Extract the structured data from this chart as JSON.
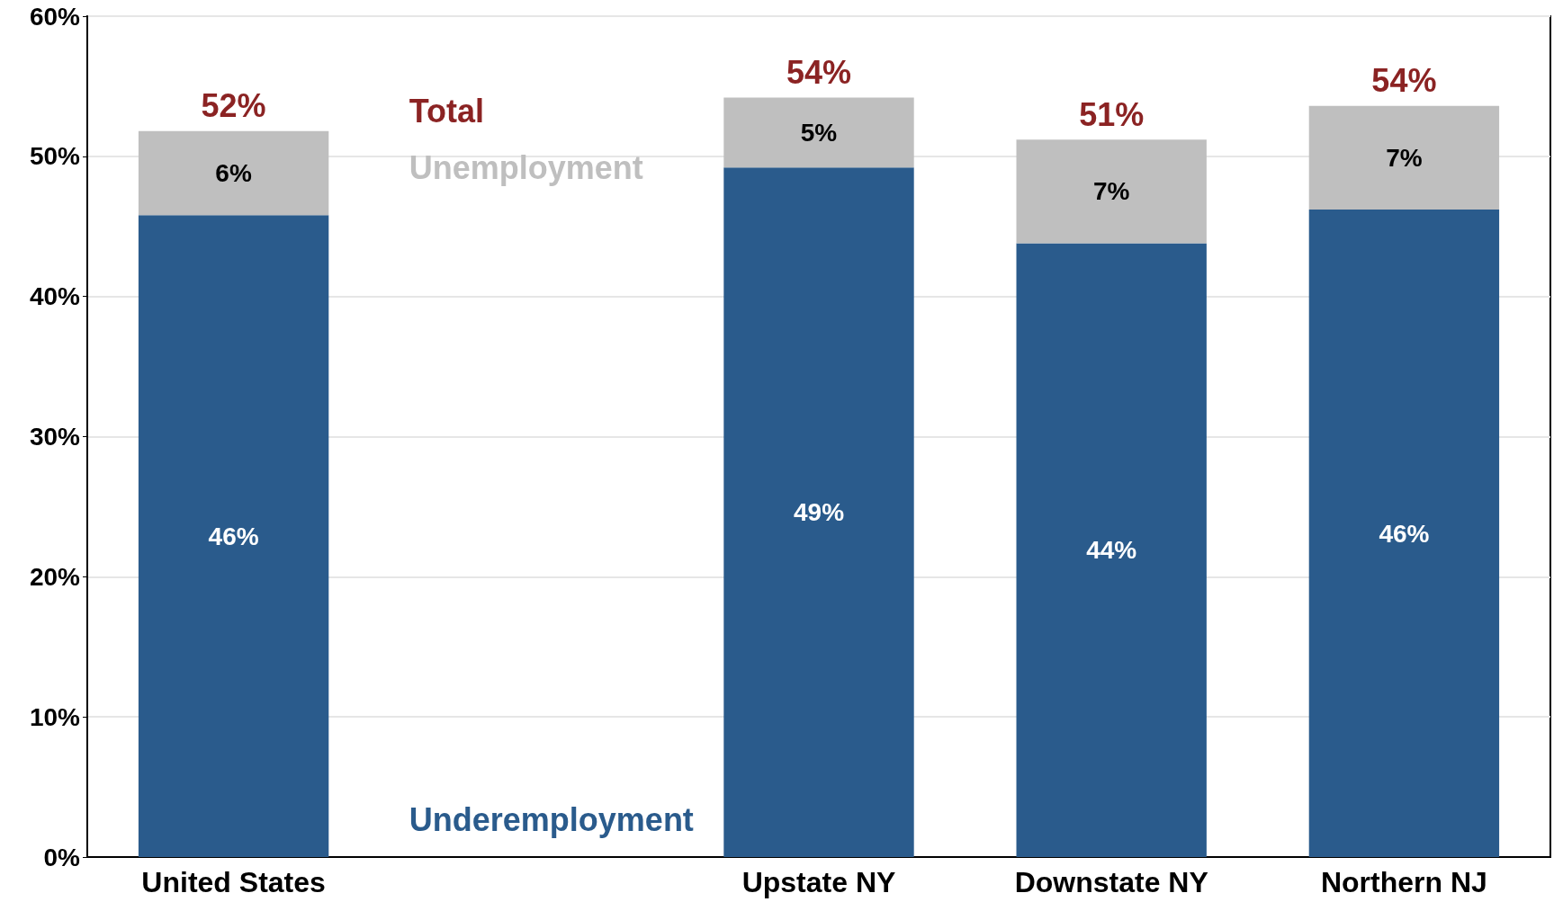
{
  "chart_data": {
    "type": "bar",
    "stacked": true,
    "categories": [
      "United States",
      null,
      "Upstate NY",
      "Downstate NY",
      "Northern NJ"
    ],
    "series": [
      {
        "name": "Underemployment",
        "color": "#2a5b8c",
        "values": [
          45.8,
          null,
          49.2,
          43.8,
          46.2
        ],
        "value_labels": [
          "46%",
          null,
          "49%",
          "44%",
          "46%"
        ]
      },
      {
        "name": "Unemployment",
        "color": "#bfbfbf",
        "values": [
          6.0,
          null,
          5.0,
          7.4,
          7.4
        ],
        "value_labels": [
          "6%",
          null,
          "5%",
          "7%",
          "7%"
        ]
      }
    ],
    "totals": [
      "52%",
      null,
      "54%",
      "51%",
      "54%"
    ],
    "annotations": [
      "Total"
    ],
    "ylim": [
      0,
      60
    ],
    "yticks": [
      {
        "value": 0,
        "label": "0%"
      },
      {
        "value": 10,
        "label": "10%"
      },
      {
        "value": 20,
        "label": "20%"
      },
      {
        "value": 30,
        "label": "30%"
      },
      {
        "value": 40,
        "label": "40%"
      },
      {
        "value": 50,
        "label": "50%"
      },
      {
        "value": 60,
        "label": "60%"
      }
    ],
    "grid": "y"
  }
}
